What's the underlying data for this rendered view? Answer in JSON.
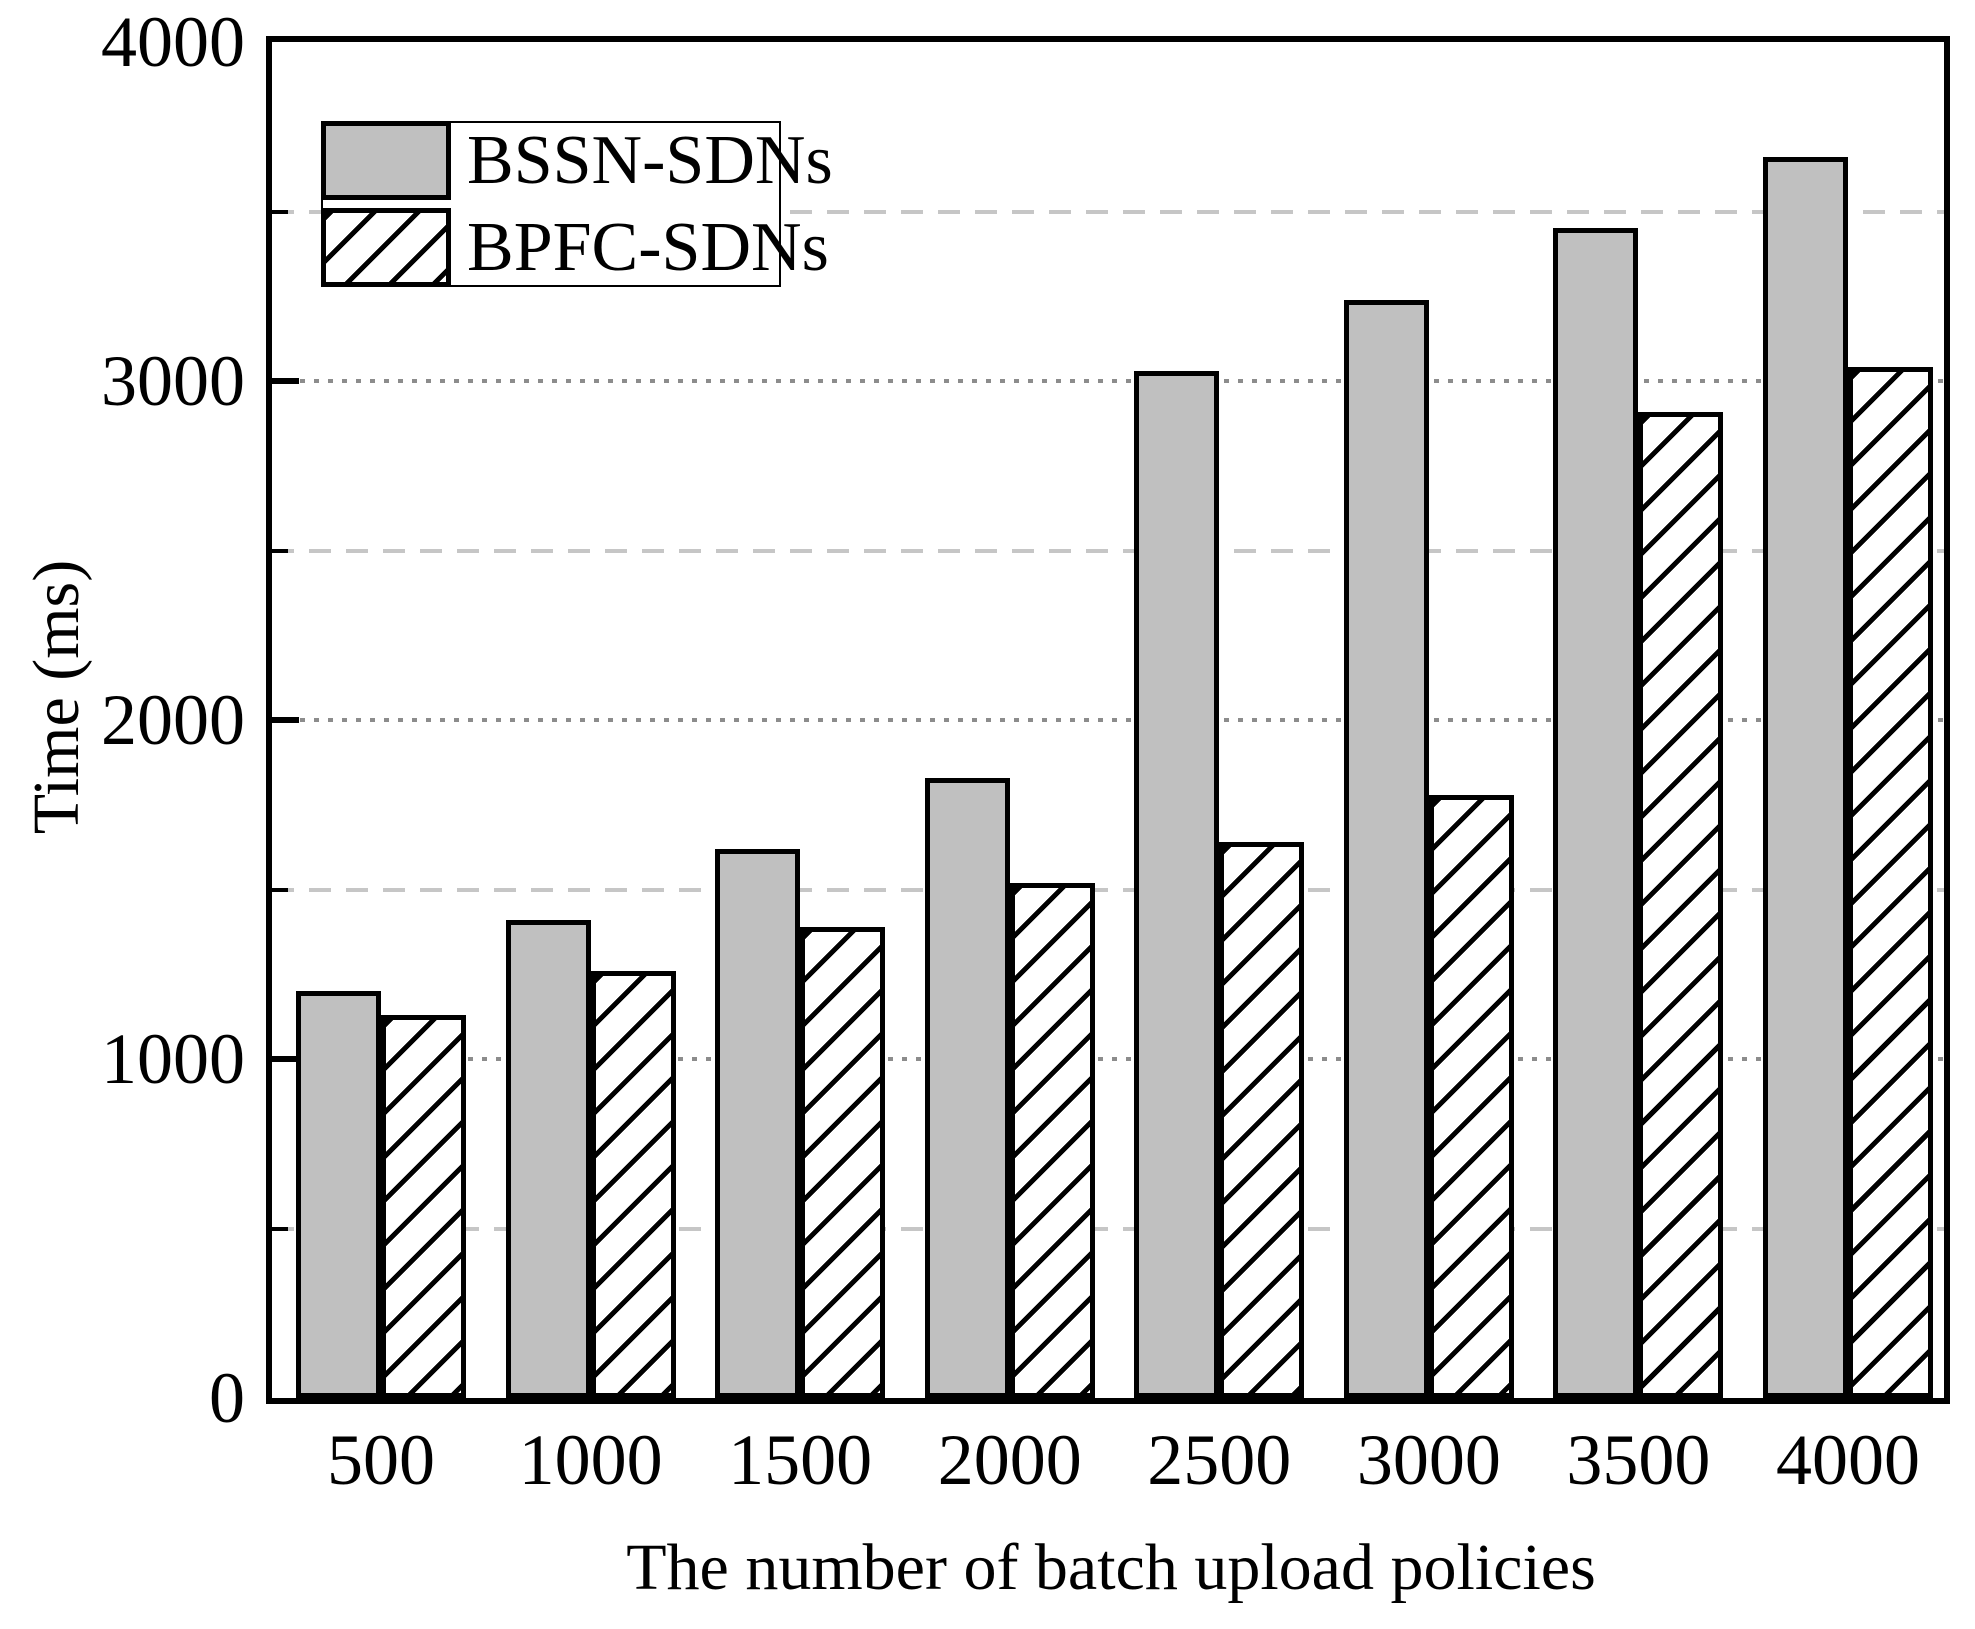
{
  "chart_data": {
    "type": "bar",
    "title": "",
    "xlabel": "The number of batch upload policies",
    "ylabel": "Time (ms)",
    "categories": [
      "500",
      "1000",
      "1500",
      "2000",
      "2500",
      "3000",
      "3500",
      "4000"
    ],
    "series": [
      {
        "name": "BSSN-SDNs",
        "style": "solid",
        "values": [
          1200,
          1410,
          1620,
          1830,
          3030,
          3240,
          3450,
          3660
        ]
      },
      {
        "name": "BPFC-SDNs",
        "style": "hatched",
        "values": [
          1130,
          1260,
          1390,
          1520,
          1640,
          1780,
          2910,
          3040
        ]
      }
    ],
    "ylim": [
      0,
      4000
    ],
    "ytick_labels": [
      "0",
      "1000",
      "2000",
      "3000",
      "4000"
    ],
    "yticks_major": [
      1000,
      2000,
      3000
    ],
    "yticks_minor": [
      500,
      1500,
      2500,
      3500
    ],
    "gridlines": {
      "major_values": [
        1000,
        2000,
        3000
      ],
      "minor_values": [
        500,
        1500,
        2500,
        3500
      ],
      "major_style": "dotted",
      "minor_style": "dashed"
    },
    "legend_position": "upper-left",
    "colors": {
      "bar_fill": "#c0c0c0",
      "bar_edge": "#000000",
      "hatch_line": "#000000",
      "grid_major": "#8c8c8c",
      "grid_minor": "#c6c6c6",
      "text": "#000000",
      "background": "#ffffff"
    }
  }
}
